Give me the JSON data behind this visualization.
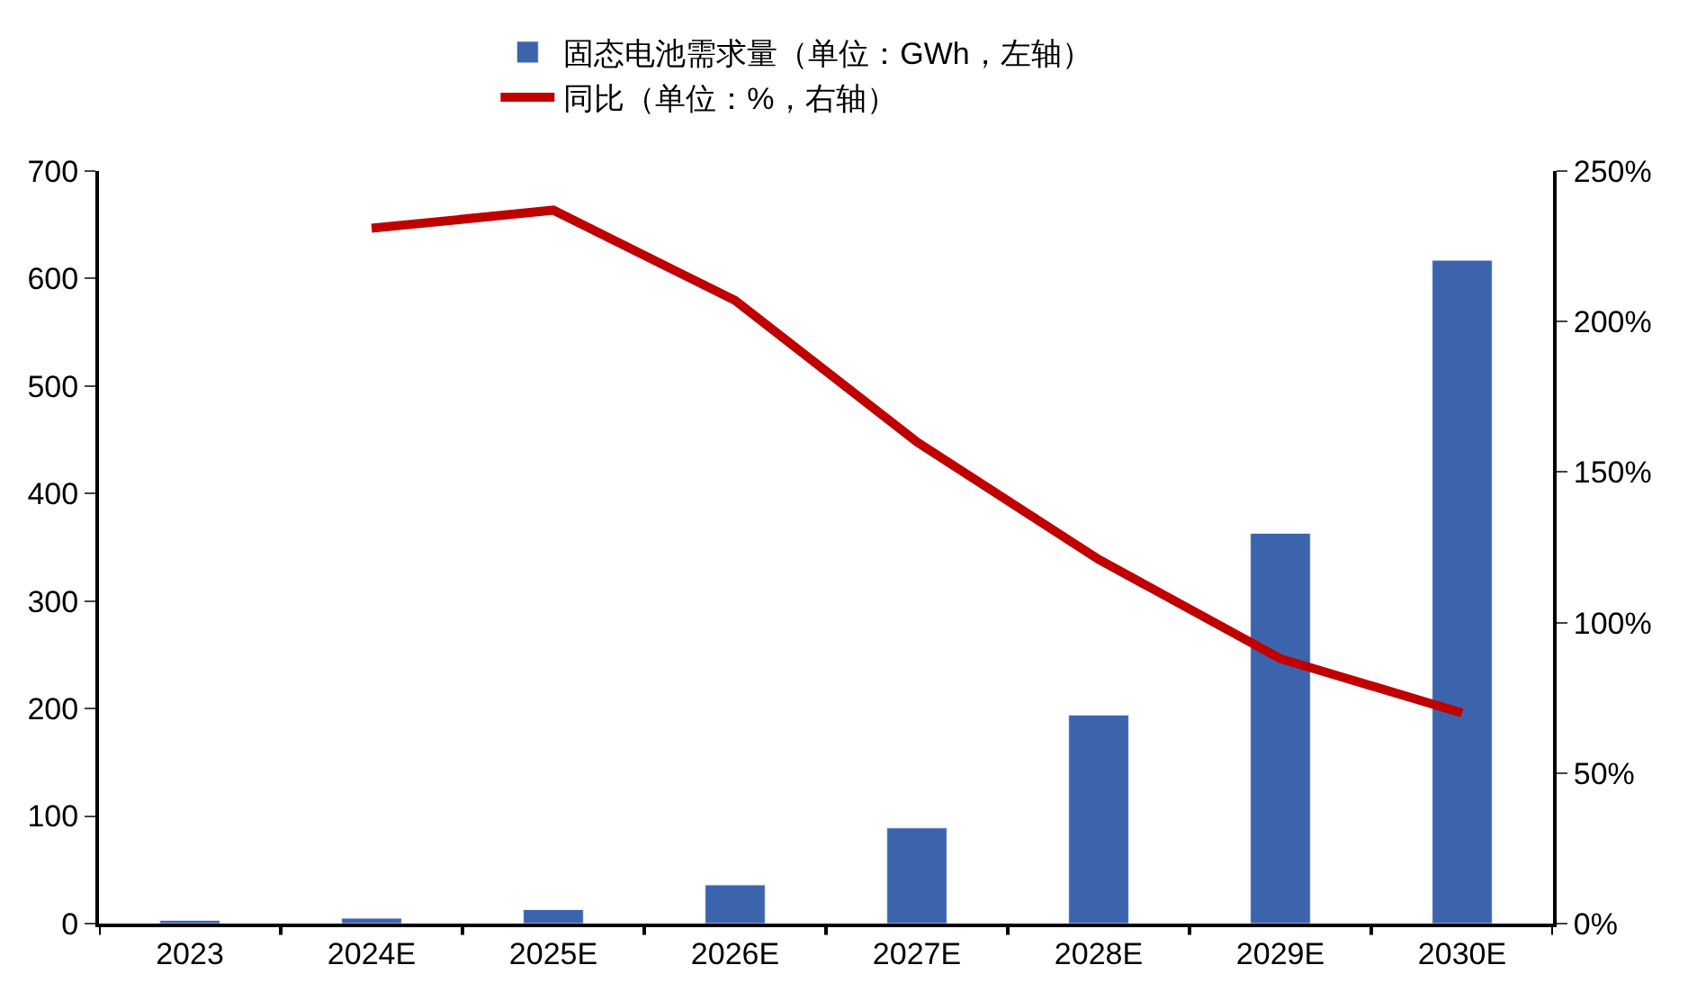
{
  "chart_data": {
    "type": "bar",
    "categories": [
      "2023",
      "2024E",
      "2025E",
      "2026E",
      "2027E",
      "2028E",
      "2029E",
      "2030E"
    ],
    "series": [
      {
        "name": "固态电池需求量（单位：GWh，左轴）",
        "color": "#3c64ac",
        "values": [
          3,
          5,
          13,
          36,
          89,
          194,
          363,
          617
        ]
      },
      {
        "name": "同比（单位：%，右轴）",
        "type": "line",
        "axis": "y2",
        "color": "#c00000",
        "values": [
          null,
          231,
          237,
          207,
          160,
          121,
          88,
          70
        ]
      }
    ],
    "ylim": [
      0,
      700
    ],
    "yticks": [
      0,
      100,
      200,
      300,
      400,
      500,
      600,
      700
    ],
    "y2lim": [
      0,
      250
    ],
    "y2ticks": [
      {
        "value": 0,
        "label": "0%"
      },
      {
        "value": 50,
        "label": "50%"
      },
      {
        "value": 100,
        "label": "100%"
      },
      {
        "value": 150,
        "label": "150%"
      },
      {
        "value": 200,
        "label": "200%"
      },
      {
        "value": 250,
        "label": "250%"
      }
    ],
    "legend": "top",
    "marker": "none",
    "line_style": "solid"
  }
}
